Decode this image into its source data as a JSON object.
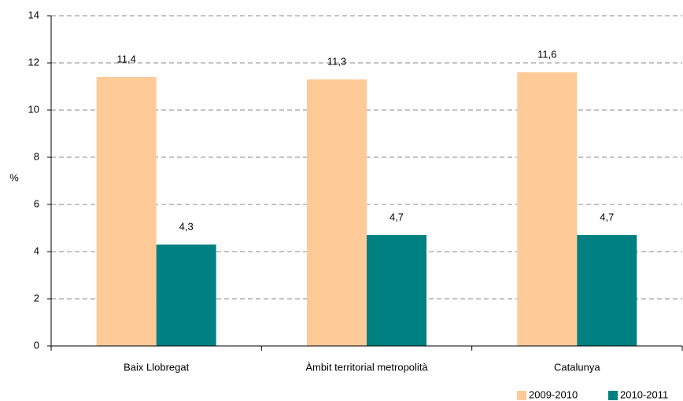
{
  "chart_data": {
    "type": "bar",
    "ylabel": "%",
    "categories": [
      "Baix Llobregat",
      "Àmbit territorial metropolità",
      "Catalunya"
    ],
    "series": [
      {
        "name": "2009-2010",
        "color": "#fdca98",
        "values": [
          11.4,
          11.3,
          11.6
        ],
        "value_labels": [
          "11,4",
          "11,3",
          "11,6"
        ]
      },
      {
        "name": "2010-2011",
        "color": "#008080",
        "values": [
          4.3,
          4.7,
          4.7
        ],
        "value_labels": [
          "4,3",
          "4,7",
          "4,7"
        ]
      }
    ],
    "ylim": [
      0,
      14
    ],
    "yticks": [
      0,
      2,
      4,
      6,
      8,
      10,
      12,
      14
    ],
    "grid": true,
    "legend": "bottom-right"
  }
}
